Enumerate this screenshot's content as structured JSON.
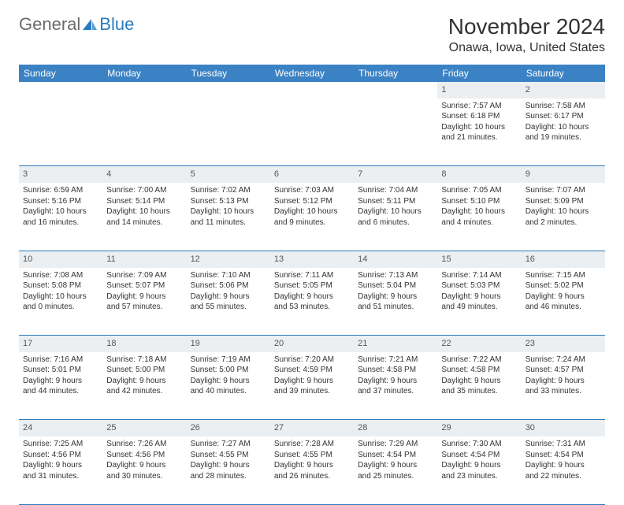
{
  "logo": {
    "general": "General",
    "blue": "Blue"
  },
  "title": "November 2024",
  "location": "Onawa, Iowa, United States",
  "colors": {
    "header_bg": "#3b82c4",
    "header_text": "#ffffff",
    "daynum_bg": "#eceff1",
    "border": "#2b7bbf",
    "logo_gray": "#6b6b6b",
    "logo_blue": "#2b7bbf"
  },
  "weekdays": [
    "Sunday",
    "Monday",
    "Tuesday",
    "Wednesday",
    "Thursday",
    "Friday",
    "Saturday"
  ],
  "weeks": [
    {
      "nums": [
        "",
        "",
        "",
        "",
        "",
        "1",
        "2"
      ],
      "cells": [
        null,
        null,
        null,
        null,
        null,
        {
          "sunrise": "Sunrise: 7:57 AM",
          "sunset": "Sunset: 6:18 PM",
          "day1": "Daylight: 10 hours",
          "day2": "and 21 minutes."
        },
        {
          "sunrise": "Sunrise: 7:58 AM",
          "sunset": "Sunset: 6:17 PM",
          "day1": "Daylight: 10 hours",
          "day2": "and 19 minutes."
        }
      ]
    },
    {
      "nums": [
        "3",
        "4",
        "5",
        "6",
        "7",
        "8",
        "9"
      ],
      "cells": [
        {
          "sunrise": "Sunrise: 6:59 AM",
          "sunset": "Sunset: 5:16 PM",
          "day1": "Daylight: 10 hours",
          "day2": "and 16 minutes."
        },
        {
          "sunrise": "Sunrise: 7:00 AM",
          "sunset": "Sunset: 5:14 PM",
          "day1": "Daylight: 10 hours",
          "day2": "and 14 minutes."
        },
        {
          "sunrise": "Sunrise: 7:02 AM",
          "sunset": "Sunset: 5:13 PM",
          "day1": "Daylight: 10 hours",
          "day2": "and 11 minutes."
        },
        {
          "sunrise": "Sunrise: 7:03 AM",
          "sunset": "Sunset: 5:12 PM",
          "day1": "Daylight: 10 hours",
          "day2": "and 9 minutes."
        },
        {
          "sunrise": "Sunrise: 7:04 AM",
          "sunset": "Sunset: 5:11 PM",
          "day1": "Daylight: 10 hours",
          "day2": "and 6 minutes."
        },
        {
          "sunrise": "Sunrise: 7:05 AM",
          "sunset": "Sunset: 5:10 PM",
          "day1": "Daylight: 10 hours",
          "day2": "and 4 minutes."
        },
        {
          "sunrise": "Sunrise: 7:07 AM",
          "sunset": "Sunset: 5:09 PM",
          "day1": "Daylight: 10 hours",
          "day2": "and 2 minutes."
        }
      ]
    },
    {
      "nums": [
        "10",
        "11",
        "12",
        "13",
        "14",
        "15",
        "16"
      ],
      "cells": [
        {
          "sunrise": "Sunrise: 7:08 AM",
          "sunset": "Sunset: 5:08 PM",
          "day1": "Daylight: 10 hours",
          "day2": "and 0 minutes."
        },
        {
          "sunrise": "Sunrise: 7:09 AM",
          "sunset": "Sunset: 5:07 PM",
          "day1": "Daylight: 9 hours",
          "day2": "and 57 minutes."
        },
        {
          "sunrise": "Sunrise: 7:10 AM",
          "sunset": "Sunset: 5:06 PM",
          "day1": "Daylight: 9 hours",
          "day2": "and 55 minutes."
        },
        {
          "sunrise": "Sunrise: 7:11 AM",
          "sunset": "Sunset: 5:05 PM",
          "day1": "Daylight: 9 hours",
          "day2": "and 53 minutes."
        },
        {
          "sunrise": "Sunrise: 7:13 AM",
          "sunset": "Sunset: 5:04 PM",
          "day1": "Daylight: 9 hours",
          "day2": "and 51 minutes."
        },
        {
          "sunrise": "Sunrise: 7:14 AM",
          "sunset": "Sunset: 5:03 PM",
          "day1": "Daylight: 9 hours",
          "day2": "and 49 minutes."
        },
        {
          "sunrise": "Sunrise: 7:15 AM",
          "sunset": "Sunset: 5:02 PM",
          "day1": "Daylight: 9 hours",
          "day2": "and 46 minutes."
        }
      ]
    },
    {
      "nums": [
        "17",
        "18",
        "19",
        "20",
        "21",
        "22",
        "23"
      ],
      "cells": [
        {
          "sunrise": "Sunrise: 7:16 AM",
          "sunset": "Sunset: 5:01 PM",
          "day1": "Daylight: 9 hours",
          "day2": "and 44 minutes."
        },
        {
          "sunrise": "Sunrise: 7:18 AM",
          "sunset": "Sunset: 5:00 PM",
          "day1": "Daylight: 9 hours",
          "day2": "and 42 minutes."
        },
        {
          "sunrise": "Sunrise: 7:19 AM",
          "sunset": "Sunset: 5:00 PM",
          "day1": "Daylight: 9 hours",
          "day2": "and 40 minutes."
        },
        {
          "sunrise": "Sunrise: 7:20 AM",
          "sunset": "Sunset: 4:59 PM",
          "day1": "Daylight: 9 hours",
          "day2": "and 39 minutes."
        },
        {
          "sunrise": "Sunrise: 7:21 AM",
          "sunset": "Sunset: 4:58 PM",
          "day1": "Daylight: 9 hours",
          "day2": "and 37 minutes."
        },
        {
          "sunrise": "Sunrise: 7:22 AM",
          "sunset": "Sunset: 4:58 PM",
          "day1": "Daylight: 9 hours",
          "day2": "and 35 minutes."
        },
        {
          "sunrise": "Sunrise: 7:24 AM",
          "sunset": "Sunset: 4:57 PM",
          "day1": "Daylight: 9 hours",
          "day2": "and 33 minutes."
        }
      ]
    },
    {
      "nums": [
        "24",
        "25",
        "26",
        "27",
        "28",
        "29",
        "30"
      ],
      "cells": [
        {
          "sunrise": "Sunrise: 7:25 AM",
          "sunset": "Sunset: 4:56 PM",
          "day1": "Daylight: 9 hours",
          "day2": "and 31 minutes."
        },
        {
          "sunrise": "Sunrise: 7:26 AM",
          "sunset": "Sunset: 4:56 PM",
          "day1": "Daylight: 9 hours",
          "day2": "and 30 minutes."
        },
        {
          "sunrise": "Sunrise: 7:27 AM",
          "sunset": "Sunset: 4:55 PM",
          "day1": "Daylight: 9 hours",
          "day2": "and 28 minutes."
        },
        {
          "sunrise": "Sunrise: 7:28 AM",
          "sunset": "Sunset: 4:55 PM",
          "day1": "Daylight: 9 hours",
          "day2": "and 26 minutes."
        },
        {
          "sunrise": "Sunrise: 7:29 AM",
          "sunset": "Sunset: 4:54 PM",
          "day1": "Daylight: 9 hours",
          "day2": "and 25 minutes."
        },
        {
          "sunrise": "Sunrise: 7:30 AM",
          "sunset": "Sunset: 4:54 PM",
          "day1": "Daylight: 9 hours",
          "day2": "and 23 minutes."
        },
        {
          "sunrise": "Sunrise: 7:31 AM",
          "sunset": "Sunset: 4:54 PM",
          "day1": "Daylight: 9 hours",
          "day2": "and 22 minutes."
        }
      ]
    }
  ]
}
